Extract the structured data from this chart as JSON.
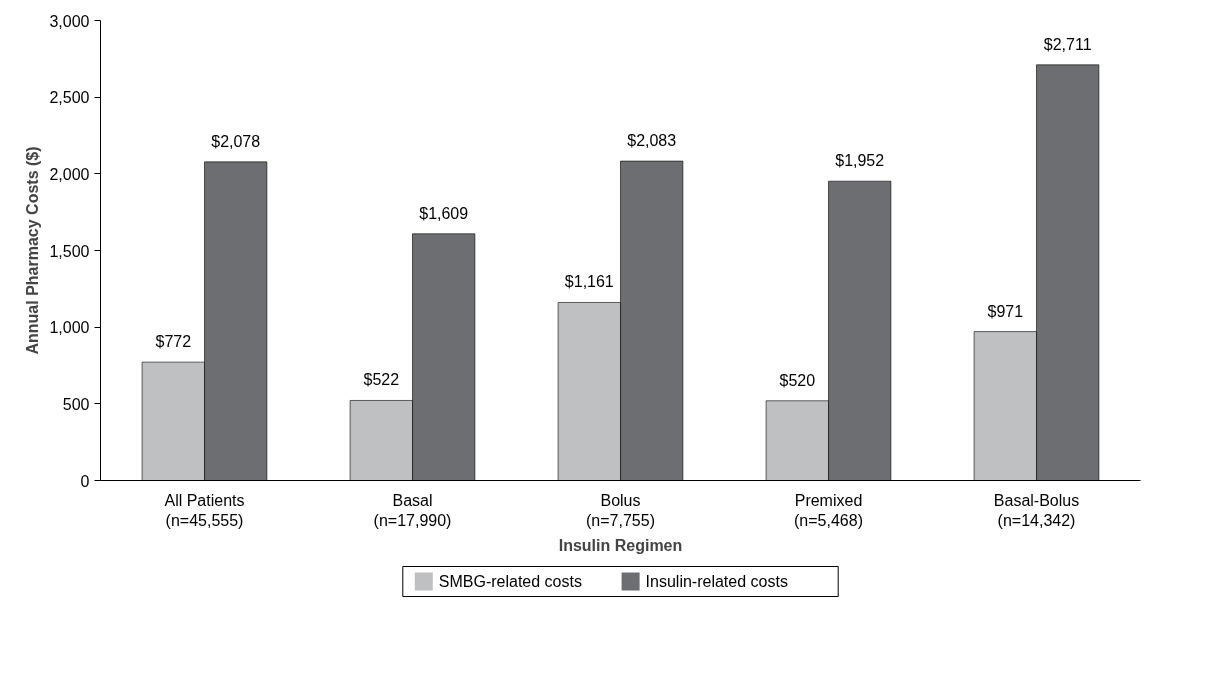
{
  "chart_data": {
    "type": "bar",
    "xlabel": "Insulin Regimen",
    "ylabel": "Annual Pharmacy Costs ($)",
    "categories": [
      "All Patients\n(n=45,555)",
      "Basal\n(n=17,990)",
      "Bolus\n(n=7,755)",
      "Premixed\n(n=5,468)",
      "Basal-Bolus\n(n=14,342)"
    ],
    "series": [
      {
        "name": "SMBG-related costs",
        "color": "#bfc0c2",
        "values": [
          772,
          522,
          1161,
          520,
          971
        ],
        "value_labels": [
          "$772",
          "$522",
          "$1,161",
          "$520",
          "$971"
        ]
      },
      {
        "name": "Insulin-related costs",
        "color": "#6d6e71",
        "values": [
          2078,
          1609,
          2083,
          1952,
          2711
        ],
        "value_labels": [
          "$2,078",
          "$1,609",
          "$2,083",
          "$1,952",
          "$2,711"
        ]
      }
    ],
    "ylim": [
      0,
      3000
    ],
    "yticks": [
      {
        "value": 0,
        "label": "0"
      },
      {
        "value": 500,
        "label": "500"
      },
      {
        "value": 1000,
        "label": "1,000"
      },
      {
        "value": 1500,
        "label": "1,500"
      },
      {
        "value": 2000,
        "label": "2,000"
      },
      {
        "value": 2500,
        "label": "2,500"
      },
      {
        "value": 3000,
        "label": "3,000"
      }
    ],
    "grid": false,
    "legend": "bottom"
  }
}
